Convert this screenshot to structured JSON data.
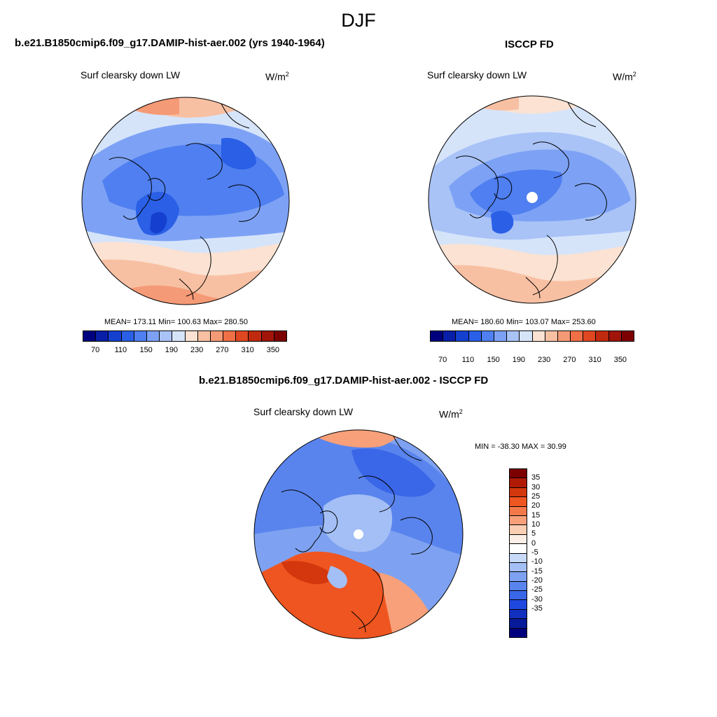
{
  "figure": {
    "title": "DJF"
  },
  "panels": {
    "model": {
      "title": "b.e21.B1850cmip6.f09_g17.DAMIP-hist-aer.002 (yrs 1940-1964)",
      "variable": "Surf clearsky down LW",
      "unit": "W/m",
      "unit_sup": "2",
      "stats": "MEAN= 173.11  Min= 100.63  Max= 280.50",
      "mean": 173.11,
      "min": 100.63,
      "max": 280.5
    },
    "obs": {
      "title": "ISCCP FD",
      "variable": "Surf clearsky down LW",
      "unit": "W/m",
      "unit_sup": "2",
      "stats": "MEAN= 180.60  Min= 103.07  Max= 253.60",
      "mean": 180.6,
      "min": 103.07,
      "max": 253.6
    },
    "diff": {
      "title": "b.e21.B1850cmip6.f09_g17.DAMIP-hist-aer.002 - ISCCP FD",
      "variable": "Surf clearsky down LW",
      "unit": "W/m",
      "unit_sup": "2",
      "stats": "MIN = -38.30 MAX =  30.99",
      "min": -38.3,
      "max": 30.99
    }
  },
  "colorbars": {
    "absolute": {
      "colors": [
        "#00007f",
        "#0a1fa8",
        "#1540cf",
        "#2a5fe6",
        "#4f7ff0",
        "#7da2f5",
        "#a9c3f7",
        "#d6e4fa",
        "#fbe2d2",
        "#f8c0a3",
        "#f59a76",
        "#ef6f47",
        "#df4720",
        "#c02a0f",
        "#a0140a",
        "#7d0000"
      ],
      "tick_labels": [
        "70",
        "110",
        "150",
        "190",
        "230",
        "270",
        "310",
        "350"
      ]
    },
    "difference": {
      "colors": [
        "#7d0000",
        "#b01a05",
        "#d4360d",
        "#ef5520",
        "#f3794a",
        "#f7a07a",
        "#fbcfb3",
        "#fbeee6",
        "#ffffff",
        "#c8daf8",
        "#a3bff5",
        "#7ea2f1",
        "#5a84ed",
        "#3a66e8",
        "#1f48e0",
        "#1230c0",
        "#061a9a",
        "#00007f"
      ],
      "tick_labels": [
        "35",
        "30",
        "25",
        "20",
        "15",
        "10",
        "5",
        "0",
        "-5",
        "-10",
        "-15",
        "-20",
        "-25",
        "-30",
        "-35"
      ]
    }
  }
}
